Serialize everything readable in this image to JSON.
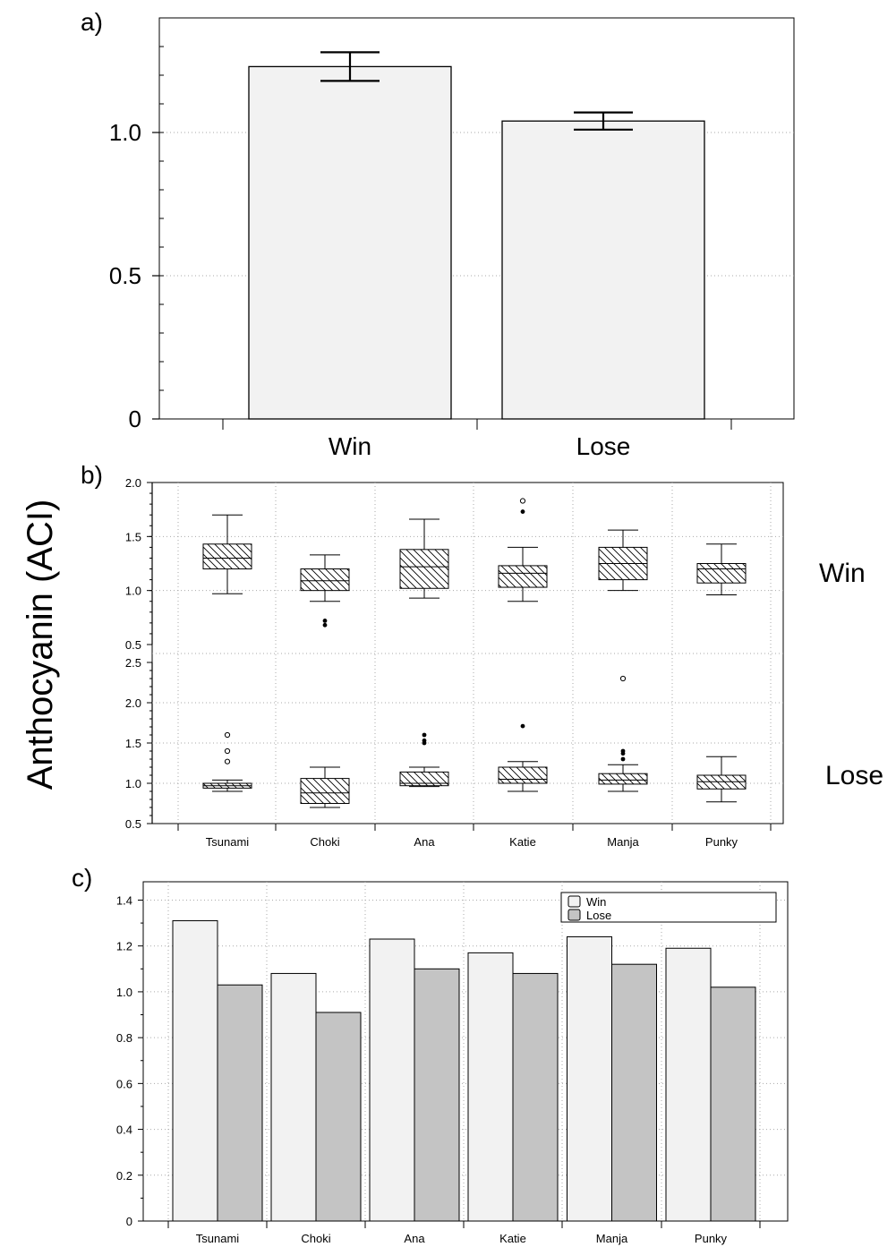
{
  "figure": {
    "y_axis_title": "Anthocyanin (ACI)",
    "panel_labels": [
      "a)",
      "b)",
      "c)"
    ],
    "side_labels": [
      "Win",
      "Lose"
    ]
  },
  "chart_data": [
    {
      "panel": "a)",
      "type": "bar",
      "categories": [
        "Win",
        "Lose"
      ],
      "values": [
        1.23,
        1.04
      ],
      "error_bars": [
        [
          1.18,
          1.28
        ],
        [
          1.01,
          1.07
        ]
      ],
      "ylim": [
        0,
        1.4
      ],
      "yticks": [
        0,
        0.5,
        1.0
      ],
      "ytick_labels": [
        "0",
        "0.5",
        "1.0"
      ],
      "grid": true,
      "colors": {
        "bar_fill": "#f2f2f2"
      }
    },
    {
      "panel": "b)",
      "type": "boxplot",
      "categories": [
        "Tsunami",
        "Choki",
        "Ana",
        "Katie",
        "Manja",
        "Punky"
      ],
      "series": [
        {
          "name": "Win",
          "ylim": [
            0.5,
            2.0
          ],
          "yticks": [
            0.5,
            1.0,
            1.5,
            2.0
          ],
          "ytick_labels": [
            "0.5",
            "1.0",
            "1.5",
            "2.0"
          ],
          "boxes": [
            {
              "whisker_low": 0.97,
              "q1": 1.2,
              "median": 1.3,
              "q3": 1.43,
              "whisker_high": 1.7,
              "outliers_filled": [],
              "outliers_open": []
            },
            {
              "whisker_low": 0.9,
              "q1": 1.0,
              "median": 1.09,
              "q3": 1.2,
              "whisker_high": 1.33,
              "outliers_filled": [
                0.72,
                0.68
              ],
              "outliers_open": []
            },
            {
              "whisker_low": 0.93,
              "q1": 1.02,
              "median": 1.22,
              "q3": 1.38,
              "whisker_high": 1.66,
              "outliers_filled": [],
              "outliers_open": []
            },
            {
              "whisker_low": 0.9,
              "q1": 1.03,
              "median": 1.16,
              "q3": 1.23,
              "whisker_high": 1.4,
              "outliers_filled": [
                1.73
              ],
              "outliers_open": [
                1.83
              ]
            },
            {
              "whisker_low": 1.0,
              "q1": 1.1,
              "median": 1.25,
              "q3": 1.4,
              "whisker_high": 1.56,
              "outliers_filled": [],
              "outliers_open": []
            },
            {
              "whisker_low": 0.96,
              "q1": 1.07,
              "median": 1.2,
              "q3": 1.25,
              "whisker_high": 1.43,
              "outliers_filled": [],
              "outliers_open": []
            }
          ]
        },
        {
          "name": "Lose",
          "ylim": [
            0.5,
            2.5
          ],
          "yticks": [
            0.5,
            1.0,
            1.5,
            2.0,
            2.5
          ],
          "ytick_labels": [
            "0.5",
            "1.0",
            "1.5",
            "2.0",
            "2.5"
          ],
          "boxes": [
            {
              "whisker_low": 0.9,
              "q1": 0.94,
              "median": 0.97,
              "q3": 1.0,
              "whisker_high": 1.04,
              "outliers_filled": [],
              "outliers_open": [
                1.6,
                1.4,
                1.27
              ]
            },
            {
              "whisker_low": 0.7,
              "q1": 0.75,
              "median": 0.88,
              "q3": 1.06,
              "whisker_high": 1.2,
              "outliers_filled": [],
              "outliers_open": []
            },
            {
              "whisker_low": 0.96,
              "q1": 0.97,
              "median": 1.0,
              "q3": 1.14,
              "whisker_high": 1.2,
              "outliers_filled": [
                1.6,
                1.53,
                1.5
              ],
              "outliers_open": []
            },
            {
              "whisker_low": 0.9,
              "q1": 1.0,
              "median": 1.05,
              "q3": 1.2,
              "whisker_high": 1.27,
              "outliers_filled": [
                1.71
              ],
              "outliers_open": []
            },
            {
              "whisker_low": 0.9,
              "q1": 0.99,
              "median": 1.04,
              "q3": 1.12,
              "whisker_high": 1.23,
              "outliers_filled": [
                1.4,
                1.37,
                1.3
              ],
              "outliers_open": [
                2.3
              ]
            },
            {
              "whisker_low": 0.77,
              "q1": 0.93,
              "median": 1.02,
              "q3": 1.1,
              "whisker_high": 1.33,
              "outliers_filled": [],
              "outliers_open": []
            }
          ]
        }
      ],
      "grid": true,
      "box_pattern": "diagonal-hatch"
    },
    {
      "panel": "c)",
      "type": "bar",
      "categories": [
        "Tsunami",
        "Choki",
        "Ana",
        "Katie",
        "Manja",
        "Punky"
      ],
      "series": [
        {
          "name": "Win",
          "values": [
            1.31,
            1.08,
            1.23,
            1.17,
            1.24,
            1.19
          ]
        },
        {
          "name": "Lose",
          "values": [
            1.03,
            0.91,
            1.1,
            1.08,
            1.12,
            1.02
          ]
        }
      ],
      "ylim": [
        0,
        1.48
      ],
      "yticks": [
        0,
        0.2,
        0.4,
        0.6,
        0.8,
        1.0,
        1.2,
        1.4
      ],
      "ytick_labels": [
        "0",
        "0.2",
        "0.4",
        "0.6",
        "0.8",
        "1.0",
        "1.2",
        "1.4"
      ],
      "grid": true,
      "legend_position": "top-right",
      "colors": {
        "win": "#f2f2f2",
        "lose": "#c4c4c4"
      }
    }
  ]
}
